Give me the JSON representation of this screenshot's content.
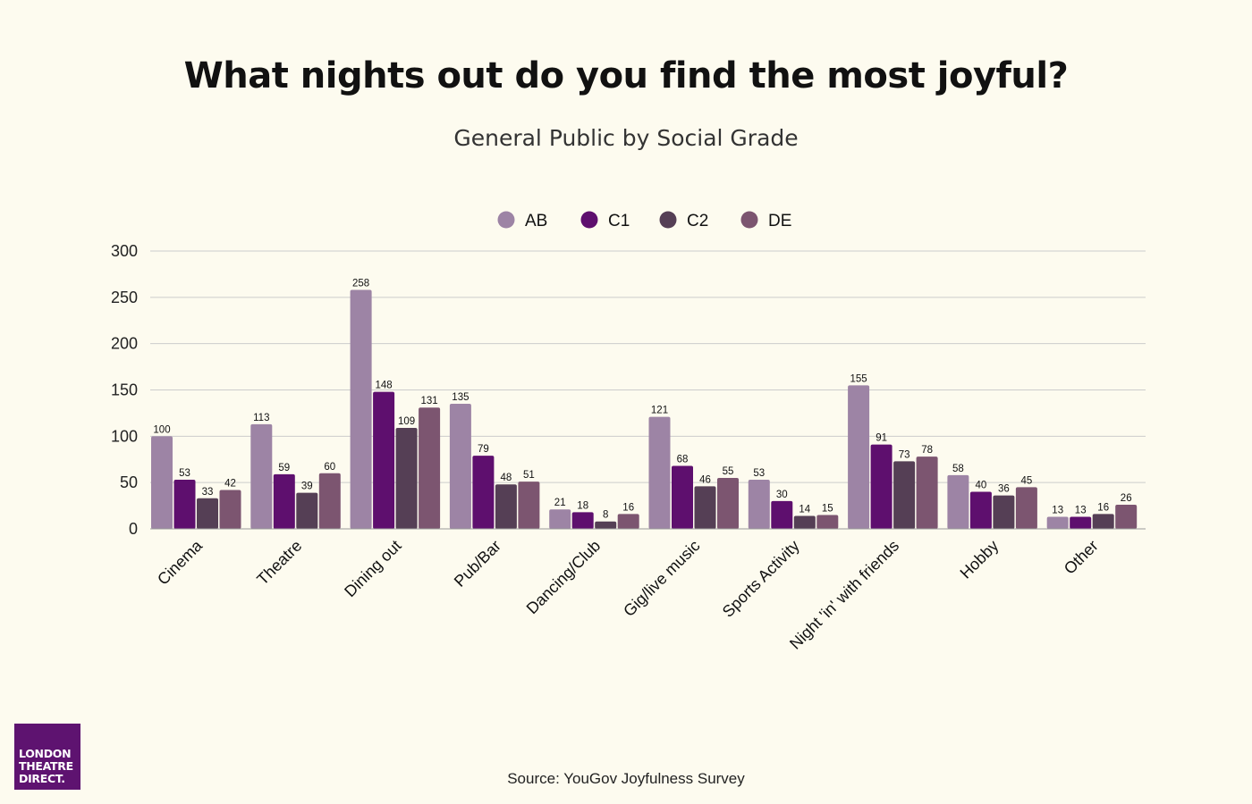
{
  "chart_data": {
    "type": "bar",
    "title": "What nights out do you find the most joyful?",
    "subtitle": "General Public by Social Grade",
    "categories": [
      "Cinema",
      "Theatre",
      "Dining out",
      "Pub/Bar",
      "Dancing/Club",
      "Gig/live music",
      "Sports Activity",
      "Night 'in' with friends",
      "Hobby",
      "Other"
    ],
    "series": [
      {
        "name": "AB",
        "color": "#9d84a5",
        "values": [
          100,
          113,
          258,
          135,
          21,
          121,
          53,
          155,
          58,
          13
        ]
      },
      {
        "name": "C1",
        "color": "#5e0f6e",
        "values": [
          53,
          59,
          148,
          79,
          18,
          68,
          30,
          91,
          40,
          13
        ]
      },
      {
        "name": "C2",
        "color": "#553f55",
        "values": [
          33,
          39,
          109,
          48,
          8,
          46,
          14,
          73,
          36,
          16
        ]
      },
      {
        "name": "DE",
        "color": "#7c5570",
        "values": [
          42,
          60,
          131,
          51,
          16,
          55,
          15,
          78,
          45,
          26
        ]
      }
    ],
    "ylim": [
      0,
      300
    ],
    "yticks": [
      0,
      50,
      100,
      150,
      200,
      250,
      300
    ],
    "xlabel": "",
    "ylabel": "",
    "grid": true,
    "legend": "top-center",
    "source": "Source: YouGov Joyfulness Survey"
  },
  "logo": {
    "line1": "LONDON",
    "line2": "THEATRE",
    "line3": "DIRECT.",
    "color": "#5e1370"
  },
  "colors": {
    "background": "#fdfbef",
    "gridline": "#cccccc"
  }
}
